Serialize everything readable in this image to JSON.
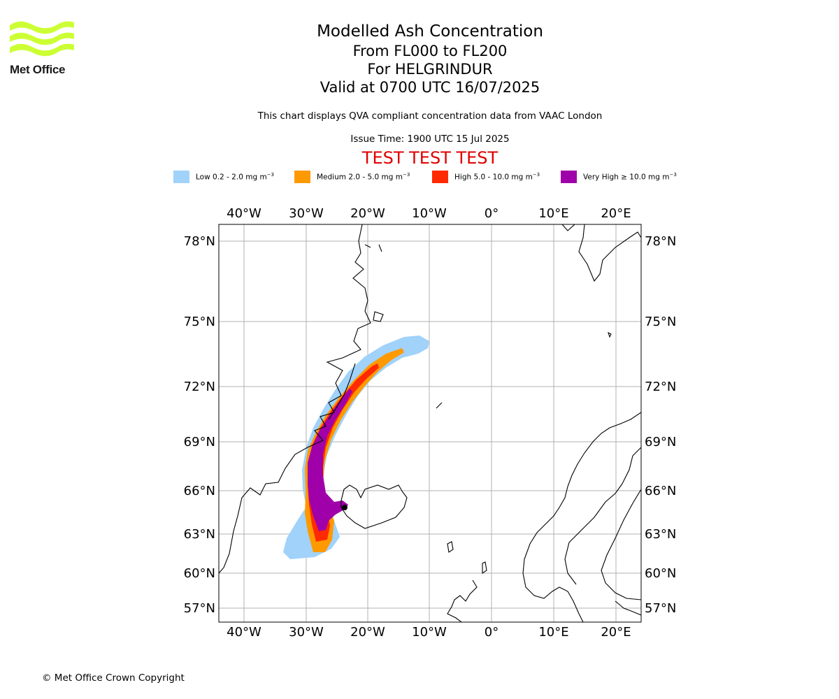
{
  "header": {
    "logo_text": "Met Office",
    "title": "Modelled Ash Concentration",
    "subtitle_levels": "From FL000 to FL200",
    "subtitle_volcano": "For HELGRINDUR",
    "subtitle_valid": "Valid at 0700 UTC 16/07/2025",
    "description": "This chart displays QVA compliant concentration data from VAAC London",
    "issue_time": "Issue Time: 1900 UTC 15 Jul 2025",
    "test_banner": "TEST TEST TEST"
  },
  "legend": [
    {
      "label": "Low 0.2 - 2.0 mg m",
      "unit_exp": "−3",
      "color": "#a0d2fa"
    },
    {
      "label": "Medium 2.0 - 5.0 mg m",
      "unit_exp": "−3",
      "color": "#ff9900"
    },
    {
      "label": "High 5.0 - 10.0 mg m",
      "unit_exp": "−3",
      "color": "#ff2a00"
    },
    {
      "label": "Very High ≥ 10.0 mg m",
      "unit_exp": "−3",
      "color": "#a000aa"
    }
  ],
  "map": {
    "lon_ticks": [
      "40°W",
      "30°W",
      "20°W",
      "10°W",
      "0°",
      "10°E",
      "20°E"
    ],
    "lat_ticks": [
      "78°N",
      "75°N",
      "72°N",
      "69°N",
      "66°N",
      "63°N",
      "60°N",
      "57°N"
    ],
    "grid": true,
    "features": [
      "greenland-east-coast",
      "iceland",
      "faroe-islands",
      "shetland",
      "scotland",
      "norway",
      "svalbard",
      "jan-mayen",
      "bear-island"
    ],
    "ash_plume_source": "Iceland (south-west)",
    "ash_plume_direction": "north along Greenland east coast toward north-east"
  },
  "footer": {
    "copyright": "© Met Office Crown Copyright"
  }
}
